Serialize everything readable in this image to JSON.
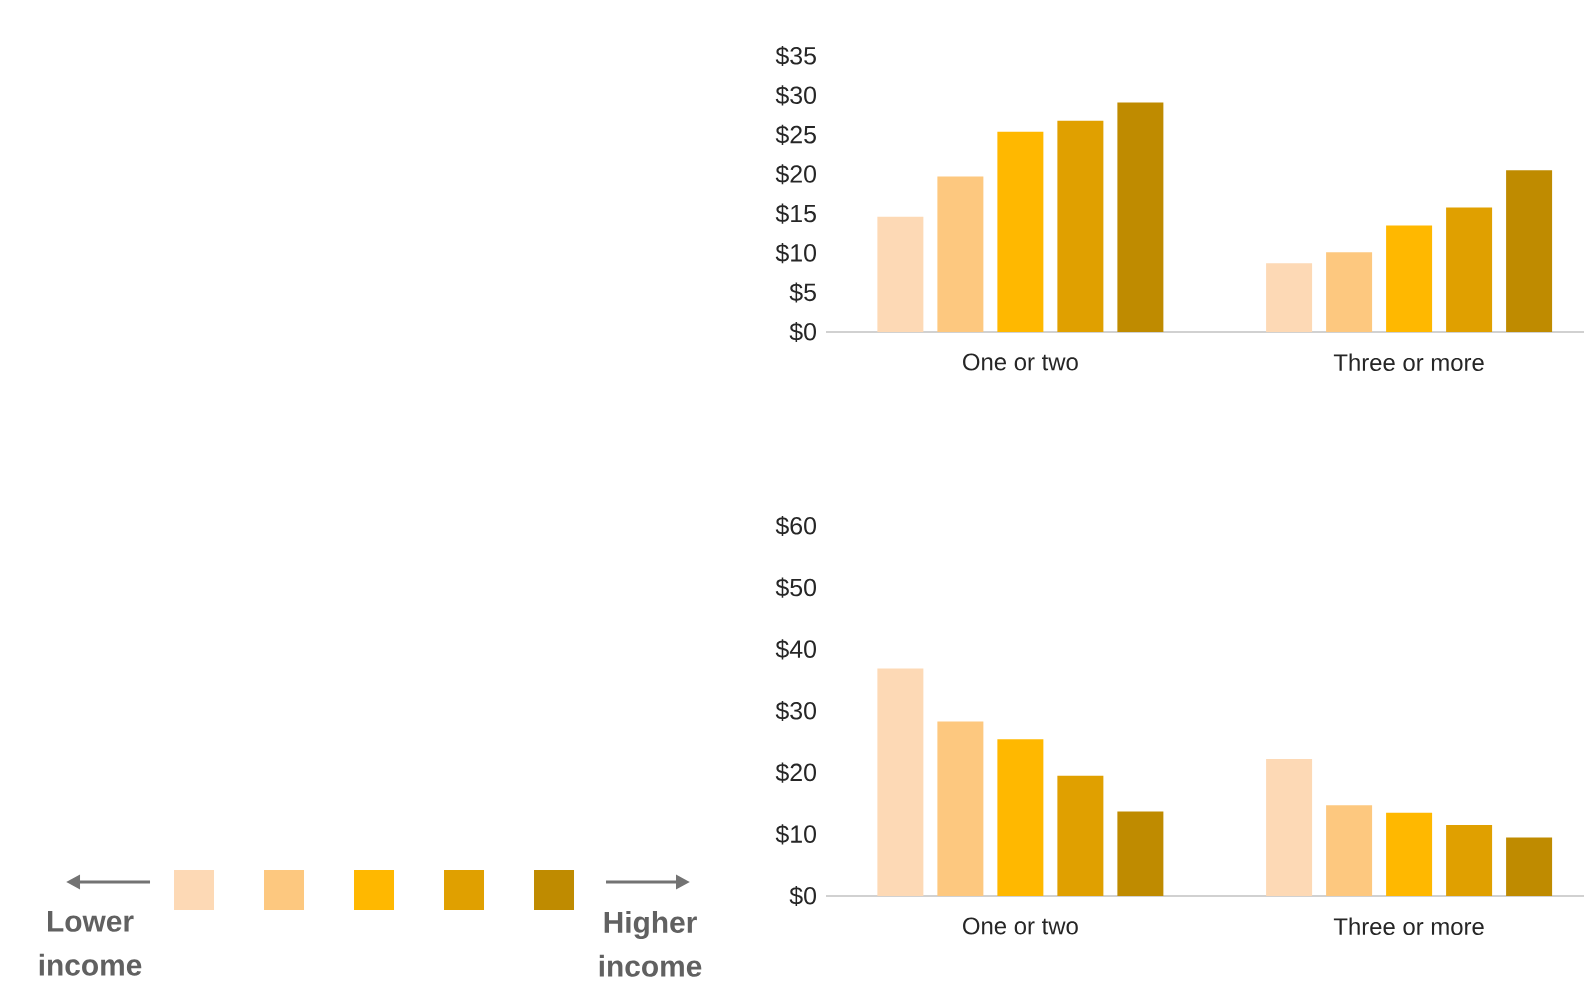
{
  "chart_data": [
    {
      "type": "bar",
      "categories": [
        "One or two",
        "Three or more"
      ],
      "ylim": [
        0,
        35
      ],
      "yticks": [
        {
          "value": 0,
          "label": "$0"
        },
        {
          "value": 5,
          "label": "$5"
        },
        {
          "value": 10,
          "label": "$10"
        },
        {
          "value": 15,
          "label": "$15"
        },
        {
          "value": 20,
          "label": "$20"
        },
        {
          "value": 25,
          "label": "$25"
        },
        {
          "value": 30,
          "label": "$30"
        },
        {
          "value": 35,
          "label": "$35"
        }
      ],
      "grid": false,
      "series": [
        {
          "color": "#fdd9b5",
          "values": [
            14.6,
            8.7
          ]
        },
        {
          "color": "#fdc87f",
          "values": [
            19.7,
            10.1
          ]
        },
        {
          "color": "#ffb800",
          "values": [
            25.4,
            13.5
          ]
        },
        {
          "color": "#e0a000",
          "values": [
            26.8,
            15.8
          ]
        },
        {
          "color": "#bf8b00",
          "values": [
            29.1,
            20.5
          ]
        }
      ]
    },
    {
      "type": "bar",
      "categories": [
        "One or two",
        "Three or more"
      ],
      "ylim": [
        0,
        60
      ],
      "yticks": [
        {
          "value": 0,
          "label": "$0"
        },
        {
          "value": 10,
          "label": "$10"
        },
        {
          "value": 20,
          "label": "$20"
        },
        {
          "value": 30,
          "label": "$30"
        },
        {
          "value": 40,
          "label": "$40"
        },
        {
          "value": 50,
          "label": "$50"
        },
        {
          "value": 60,
          "label": "$60"
        }
      ],
      "grid": false,
      "annotations": [
        "Lower income",
        "Higher income"
      ],
      "series": [
        {
          "color": "#fdd9b5",
          "values": [
            36.9,
            22.2
          ]
        },
        {
          "color": "#fdc87f",
          "values": [
            28.3,
            14.7
          ]
        },
        {
          "color": "#ffb800",
          "values": [
            25.4,
            13.5
          ]
        },
        {
          "color": "#e0a000",
          "values": [
            19.5,
            11.5
          ]
        },
        {
          "color": "#bf8b00",
          "values": [
            13.7,
            9.5
          ]
        }
      ]
    }
  ]
}
